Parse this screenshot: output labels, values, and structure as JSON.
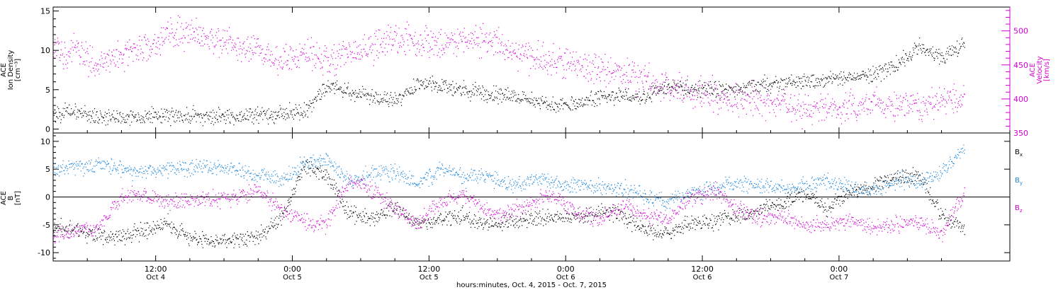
{
  "colors": {
    "black": "#000000",
    "magenta": "#d400d4",
    "blue": "#1a86dc"
  },
  "chart_data": [
    {
      "type": "scatter",
      "panel": "top",
      "ylabel_lines": [
        "ACE",
        "Ion Density",
        "[cm⁻³]"
      ],
      "ylabel_right_lines": [
        "ACE",
        "Velocity",
        "[km/s]"
      ],
      "xlim_hours": [
        0,
        84
      ],
      "ylim_left": [
        -0.5,
        15.5
      ],
      "ylim_right": [
        350,
        535
      ],
      "yticks_left": [
        0,
        5,
        10,
        15
      ],
      "yticks_right": [
        350,
        400,
        450,
        500
      ],
      "series": [
        {
          "name": "",
          "axis": "left",
          "color": "black",
          "x": [
            0,
            2,
            4,
            6,
            8,
            10,
            12,
            14,
            16,
            18,
            20,
            22,
            24,
            25,
            26,
            28,
            30,
            32,
            34,
            36,
            38,
            40,
            42,
            44,
            46,
            48,
            50,
            52,
            54,
            56,
            58,
            60,
            62,
            64,
            66,
            68,
            70,
            72,
            74,
            76,
            78,
            80
          ],
          "y": [
            2.0,
            2.2,
            1.5,
            1.5,
            1.6,
            1.7,
            1.7,
            1.5,
            1.7,
            1.8,
            2.0,
            2.2,
            5.5,
            5.2,
            4.8,
            4.0,
            3.6,
            5.8,
            5.5,
            5.0,
            4.5,
            4.2,
            3.8,
            3.0,
            3.2,
            4.0,
            4.2,
            4.0,
            5.5,
            5.0,
            5.2,
            5.0,
            5.5,
            5.8,
            6.0,
            6.2,
            6.5,
            7.0,
            8.0,
            10.5,
            9.0,
            11.0
          ]
        },
        {
          "name": "",
          "axis": "right",
          "color": "magenta",
          "x": [
            0,
            2,
            4,
            6,
            8,
            10,
            12,
            14,
            16,
            18,
            20,
            22,
            24,
            25,
            26,
            28,
            30,
            32,
            34,
            36,
            38,
            40,
            42,
            44,
            46,
            48,
            50,
            52,
            54,
            56,
            58,
            60,
            62,
            64,
            66,
            68,
            70,
            72,
            74,
            76,
            78,
            80
          ],
          "y": [
            470,
            470,
            450,
            465,
            475,
            495,
            500,
            490,
            475,
            470,
            455,
            465,
            460,
            460,
            465,
            475,
            490,
            485,
            480,
            490,
            485,
            475,
            460,
            455,
            450,
            445,
            440,
            425,
            420,
            410,
            405,
            400,
            398,
            390,
            385,
            388,
            390,
            392,
            390,
            392,
            398,
            400
          ]
        }
      ]
    },
    {
      "type": "scatter",
      "panel": "bottom",
      "ylabel_lines": [
        "ACE",
        "B",
        "[nT]"
      ],
      "xlabel": "hours:minutes, Oct.  4, 2015 - Oct.  7, 2015",
      "xlim_hours": [
        0,
        84
      ],
      "ylim": [
        -11.5,
        11.5
      ],
      "yticks": [
        -10,
        -5,
        0,
        5,
        10
      ],
      "x_ticks": [
        {
          "hour": 9,
          "time": "12:00",
          "date": "Oct 4"
        },
        {
          "hour": 21,
          "time": "0:00",
          "date": "Oct 5"
        },
        {
          "hour": 33,
          "time": "12:00",
          "date": "Oct 5"
        },
        {
          "hour": 45,
          "time": "0:00",
          "date": "Oct 6"
        },
        {
          "hour": 57,
          "time": "12:00",
          "date": "Oct 6"
        },
        {
          "hour": 69,
          "time": "0:00",
          "date": "Oct 7"
        }
      ],
      "legend": [
        {
          "base": "B",
          "sub": "x",
          "color": "black"
        },
        {
          "base": "B",
          "sub": "y",
          "color": "blue"
        },
        {
          "base": "B",
          "sub": "z",
          "color": "magenta"
        }
      ],
      "series": [
        {
          "name": "Bx",
          "color": "black",
          "x": [
            0,
            2,
            4,
            6,
            8,
            10,
            12,
            14,
            16,
            18,
            20,
            22,
            24,
            26,
            28,
            30,
            32,
            34,
            36,
            38,
            40,
            42,
            44,
            46,
            48,
            50,
            52,
            54,
            56,
            58,
            60,
            62,
            64,
            66,
            68,
            70,
            72,
            74,
            76,
            78,
            80
          ],
          "y": [
            -5.5,
            -6.0,
            -7.0,
            -7.2,
            -6.0,
            -4.5,
            -7.5,
            -7.8,
            -7.6,
            -7.2,
            -4.0,
            5.5,
            4.0,
            -3.0,
            -4.0,
            -2.0,
            -5.0,
            -4.0,
            -3.5,
            -5.0,
            -4.5,
            -4.0,
            -3.5,
            -4.0,
            -2.5,
            -3.5,
            -6.0,
            -6.5,
            -4.5,
            -4.5,
            -3.5,
            -2.5,
            -1.0,
            0.5,
            -2.0,
            1.0,
            2.0,
            3.5,
            4.0,
            -3.5,
            -5.5
          ]
        },
        {
          "name": "By",
          "color": "blue",
          "x": [
            0,
            2,
            4,
            6,
            8,
            10,
            12,
            14,
            16,
            18,
            20,
            22,
            24,
            26,
            28,
            30,
            32,
            34,
            36,
            38,
            40,
            42,
            44,
            46,
            48,
            50,
            52,
            54,
            56,
            58,
            60,
            62,
            64,
            66,
            68,
            70,
            72,
            74,
            76,
            78,
            80
          ],
          "y": [
            5.0,
            5.5,
            5.8,
            5.0,
            4.5,
            5.0,
            5.2,
            5.5,
            5.0,
            4.0,
            3.0,
            6.0,
            6.5,
            3.0,
            4.0,
            4.5,
            2.5,
            5.0,
            3.5,
            4.0,
            2.0,
            3.0,
            2.5,
            2.0,
            2.0,
            1.5,
            0.0,
            -1.0,
            0.5,
            1.5,
            2.5,
            2.0,
            1.5,
            2.0,
            3.0,
            1.5,
            1.0,
            3.0,
            2.5,
            4.5,
            8.5
          ]
        },
        {
          "name": "Bz",
          "color": "magenta",
          "x": [
            0,
            2,
            4,
            6,
            8,
            10,
            12,
            14,
            16,
            18,
            20,
            22,
            24,
            26,
            28,
            30,
            32,
            34,
            36,
            38,
            40,
            42,
            44,
            46,
            48,
            50,
            52,
            54,
            56,
            58,
            60,
            62,
            64,
            66,
            68,
            70,
            72,
            74,
            76,
            78,
            80
          ],
          "y": [
            -7.0,
            -6.0,
            -5.5,
            0.0,
            0.5,
            -1.0,
            -0.5,
            -0.5,
            0.0,
            1.0,
            -2.0,
            -4.5,
            -5.0,
            3.0,
            1.0,
            -2.0,
            -5.0,
            -1.0,
            0.5,
            -2.5,
            -3.0,
            -1.0,
            0.5,
            -3.0,
            -4.0,
            -1.5,
            -3.5,
            -4.0,
            0.0,
            1.0,
            -2.0,
            -4.0,
            -3.5,
            -5.0,
            -5.0,
            -4.0,
            -5.5,
            -5.0,
            -4.5,
            -6.5,
            0.5
          ]
        }
      ]
    }
  ]
}
